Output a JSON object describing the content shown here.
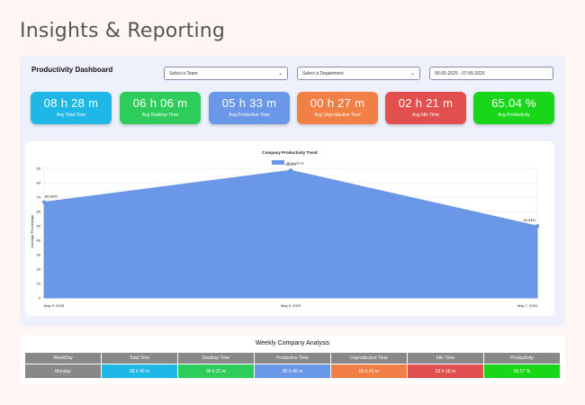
{
  "page": {
    "title": "Insights & Reporting"
  },
  "dashboard": {
    "title": "Productivity Dashboard",
    "team_select": "Select a Team",
    "dept_select": "Select a Department",
    "date_range": "05-05-2025 - 07-05-2025"
  },
  "kpis": [
    {
      "value": "08 h 28 m",
      "label": "Avg Total Time",
      "color": "#1fb7e6"
    },
    {
      "value": "06 h 06 m",
      "label": "Avg Desktop Time",
      "color": "#2ecc5a"
    },
    {
      "value": "05 h 33 m",
      "label": "Avg Productive Time",
      "color": "#6b97e8"
    },
    {
      "value": "00 h 27 m",
      "label": "Avg Unproductive Time",
      "color": "#f27f45"
    },
    {
      "value": "02 h 21 m",
      "label": "Avg Idle Time",
      "color": "#e14f4f"
    },
    {
      "value": "65.04 %",
      "label": "Avg Productivity",
      "color": "#1ad619"
    }
  ],
  "chart_data": {
    "type": "area",
    "title": "Company Productivity Trend",
    "legend": "Productivity",
    "ylabel": "Average Percentage",
    "xlabel": "",
    "x": [
      "May 5, 2025",
      "May 6, 2025",
      "May 7, 2025"
    ],
    "series": [
      {
        "name": "Productivity",
        "values": [
          66.52,
          88.6,
          49.94
        ]
      }
    ],
    "point_labels": [
      "66.52%",
      "88.6%",
      "49.94%"
    ],
    "ylim": [
      0,
      90
    ],
    "yticks": [
      "0",
      "10",
      "20",
      "30",
      "40",
      "50",
      "60",
      "70",
      "80",
      "90"
    ],
    "grid": true,
    "color": "#6b97e8"
  },
  "table": {
    "title": "Weekly Company Analysis",
    "headers": [
      "WeekDay",
      "Total Time",
      "Desktop Time",
      "Productive Time",
      "Unproductive Time",
      "Idle Time",
      "Productivity"
    ],
    "rows": [
      [
        "Monday",
        "08 h 40 m",
        "06 h 21 m",
        "05 h 40 m",
        "00 h 41 m",
        "02 h 18 m",
        "66.57 %"
      ]
    ],
    "cell_colors": [
      "#888888",
      "#1fb7e6",
      "#2ecc5a",
      "#6b97e8",
      "#f27f45",
      "#e14f4f",
      "#1ad619"
    ]
  }
}
